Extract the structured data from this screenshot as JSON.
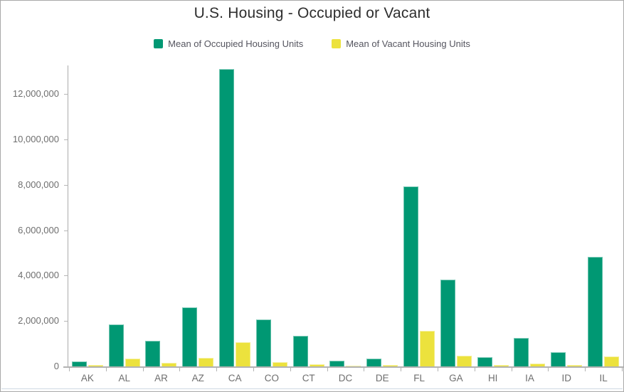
{
  "title": "U.S. Housing - Occupied or Vacant",
  "legend": [
    {
      "label": "Mean of Occupied Housing Units",
      "color": "#009873"
    },
    {
      "label": "Mean of Vacant Housing Units",
      "color": "#ECE23D"
    }
  ],
  "colors": {
    "occupied": "#009873",
    "vacant": "#ECE23D",
    "title_text": "#2e2e2e",
    "axis_text": "#6e6e6e",
    "legend_text": "#55555f",
    "axis_line": "#ababab",
    "frame_border": "#a9a9a9"
  },
  "chart_data": {
    "type": "bar",
    "title": "U.S. Housing - Occupied or Vacant",
    "xlabel": "",
    "ylabel": "",
    "categories": [
      "AK",
      "AL",
      "AR",
      "AZ",
      "CA",
      "CO",
      "CT",
      "DC",
      "DE",
      "FL",
      "GA",
      "HI",
      "IA",
      "ID",
      "IL"
    ],
    "series": [
      {
        "name": "Mean of Occupied Housing Units",
        "color": "#009873",
        "values": [
          230000,
          1850000,
          1130000,
          2600000,
          13100000,
          2080000,
          1340000,
          260000,
          350000,
          7930000,
          3820000,
          420000,
          1240000,
          620000,
          4830000
        ]
      },
      {
        "name": "Mean of Vacant Housing Units",
        "color": "#ECE23D",
        "values": [
          60000,
          340000,
          170000,
          370000,
          1070000,
          190000,
          100000,
          40000,
          60000,
          1560000,
          460000,
          50000,
          120000,
          70000,
          450000
        ]
      }
    ],
    "ylim": [
      0,
      13270000
    ],
    "yticks": [
      0,
      2000000,
      4000000,
      6000000,
      8000000,
      10000000,
      12000000
    ],
    "ytick_labels": [
      "0",
      "2,000,000",
      "4,000,000",
      "6,000,000",
      "8,000,000",
      "10,000,000",
      "12,000,000"
    ],
    "grid": false,
    "legend_position": "top"
  }
}
